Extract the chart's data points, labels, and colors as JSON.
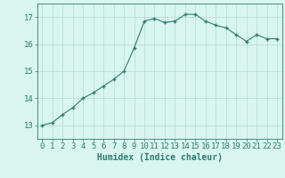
{
  "x": [
    0,
    1,
    2,
    3,
    4,
    5,
    6,
    7,
    8,
    9,
    10,
    11,
    12,
    13,
    14,
    15,
    16,
    17,
    18,
    19,
    20,
    21,
    22,
    23
  ],
  "y": [
    13.0,
    13.1,
    13.4,
    13.65,
    14.0,
    14.2,
    14.45,
    14.7,
    15.0,
    15.85,
    16.85,
    16.95,
    16.8,
    16.85,
    17.1,
    17.1,
    16.85,
    16.7,
    16.6,
    16.35,
    16.1,
    16.35,
    16.2,
    16.2
  ],
  "line_color": "#2e7d6e",
  "marker": "+",
  "marker_size": 3.5,
  "bg_color": "#d8f5f0",
  "grid_color": "#b8d9d0",
  "axis_color": "#2e7d6e",
  "xlabel": "Humidex (Indice chaleur)",
  "xlabel_fontsize": 7,
  "tick_fontsize": 6.5,
  "xlim": [
    -0.5,
    23.5
  ],
  "ylim": [
    12.5,
    17.5
  ],
  "yticks": [
    13,
    14,
    15,
    16,
    17
  ],
  "xticks": [
    0,
    1,
    2,
    3,
    4,
    5,
    6,
    7,
    8,
    9,
    10,
    11,
    12,
    13,
    14,
    15,
    16,
    17,
    18,
    19,
    20,
    21,
    22,
    23
  ]
}
